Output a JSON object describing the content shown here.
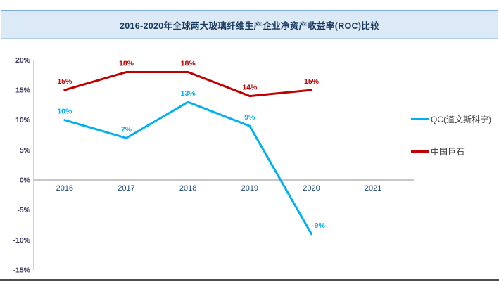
{
  "page": {
    "title": "2016-2020年全球两大玻璃纤维生产企业净资产收益率(ROC)比较"
  },
  "chart_data": {
    "type": "line",
    "title": "2016-2020年全球两大玻璃纤维生产企业净资产收益率(ROC)比较",
    "categories": [
      "2016",
      "2017",
      "2018",
      "2019",
      "2020",
      "2021"
    ],
    "series": [
      {
        "name": "QC(道文斯科宁)",
        "color": "#00B0F0",
        "values": [
          10,
          7,
          13,
          9,
          -9,
          null
        ],
        "labels": [
          "10%",
          "7%",
          "13%",
          "9%",
          "-9%",
          ""
        ]
      },
      {
        "name": "中国巨石",
        "color": "#C00000",
        "values": [
          15,
          18,
          18,
          14,
          15,
          null
        ],
        "labels": [
          "15%",
          "18%",
          "18%",
          "14%",
          "15%",
          ""
        ]
      }
    ],
    "xlabel": "",
    "ylabel": "",
    "ylim": [
      -15,
      20
    ],
    "ytick_step": 5,
    "ytick_labels": [
      "20%",
      "15%",
      "10%",
      "5%",
      "0%",
      "-5%",
      "-10%",
      "-15%"
    ],
    "grid": false,
    "legend_position": "right",
    "axis_color": "#BFBFBF",
    "zero_line_color": "#A6A6A6",
    "ytick_label_color": "#3F3A5E",
    "xtick_label_color": "#1F497D"
  }
}
